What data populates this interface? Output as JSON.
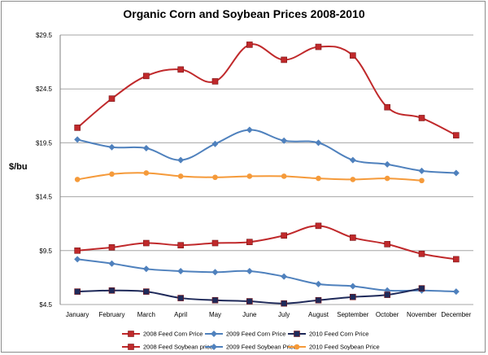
{
  "chart_data": {
    "type": "line",
    "title": "Organic Corn and Soybean Prices 2008-2010",
    "ylabel": "$/bu",
    "xlabel": "",
    "categories": [
      "January",
      "February",
      "March",
      "April",
      "May",
      "June",
      "July",
      "August",
      "September",
      "October",
      "November",
      "December"
    ],
    "yticks": [
      "$4.5",
      "$9.5",
      "$14.5",
      "$19.5",
      "$24.5",
      "$29.5"
    ],
    "ytick_values": [
      4.5,
      9.5,
      14.5,
      19.5,
      24.5,
      29.5
    ],
    "ylim": [
      4.5,
      29.5
    ],
    "grid": true,
    "legend_position": "bottom",
    "series": [
      {
        "name": "2008 Feed Corn Price",
        "color": "#c0292b",
        "marker": "square",
        "values": [
          null,
          null,
          null,
          null,
          null,
          null,
          null,
          null,
          null,
          null,
          null,
          null
        ]
      },
      {
        "name": "2009 Feed Corn Price",
        "color": "#4f81bd",
        "marker": "diamond",
        "values": [
          8.7,
          8.3,
          7.8,
          7.6,
          7.5,
          7.6,
          7.1,
          6.4,
          6.2,
          5.8,
          5.8,
          5.7
        ]
      },
      {
        "name": "2010 Feed Corn Price",
        "color": "#1f2a5a",
        "marker": "square",
        "values": [
          5.7,
          5.8,
          5.7,
          5.1,
          4.9,
          4.8,
          4.6,
          4.9,
          5.2,
          5.4,
          6.0,
          null
        ]
      },
      {
        "name": "2008 Feed Soybean price",
        "color": "#c0292b",
        "marker": "square",
        "values": [
          20.9,
          23.6,
          25.7,
          26.3,
          25.2,
          28.6,
          27.2,
          28.4,
          27.6,
          22.8,
          21.8,
          20.2
        ]
      },
      {
        "name": "2009 Feed Soybean Price",
        "color": "#4f81bd",
        "marker": "diamond",
        "values": [
          19.8,
          19.1,
          19.0,
          17.9,
          19.4,
          20.7,
          19.7,
          19.5,
          17.9,
          17.5,
          16.9,
          16.7
        ]
      },
      {
        "name": "2010 Feed Soybean Price",
        "color": "#f59a3a",
        "marker": "circle",
        "values": [
          16.1,
          16.6,
          16.7,
          16.4,
          16.3,
          16.4,
          16.4,
          16.2,
          16.1,
          16.2,
          16.0,
          null
        ]
      }
    ],
    "extra_series_note_values": {
      "2008 Feed Corn Price": [
        9.5,
        9.8,
        10.2,
        10.0,
        10.2,
        10.3,
        10.9,
        11.8,
        10.7,
        10.1,
        9.2,
        8.7
      ]
    }
  }
}
